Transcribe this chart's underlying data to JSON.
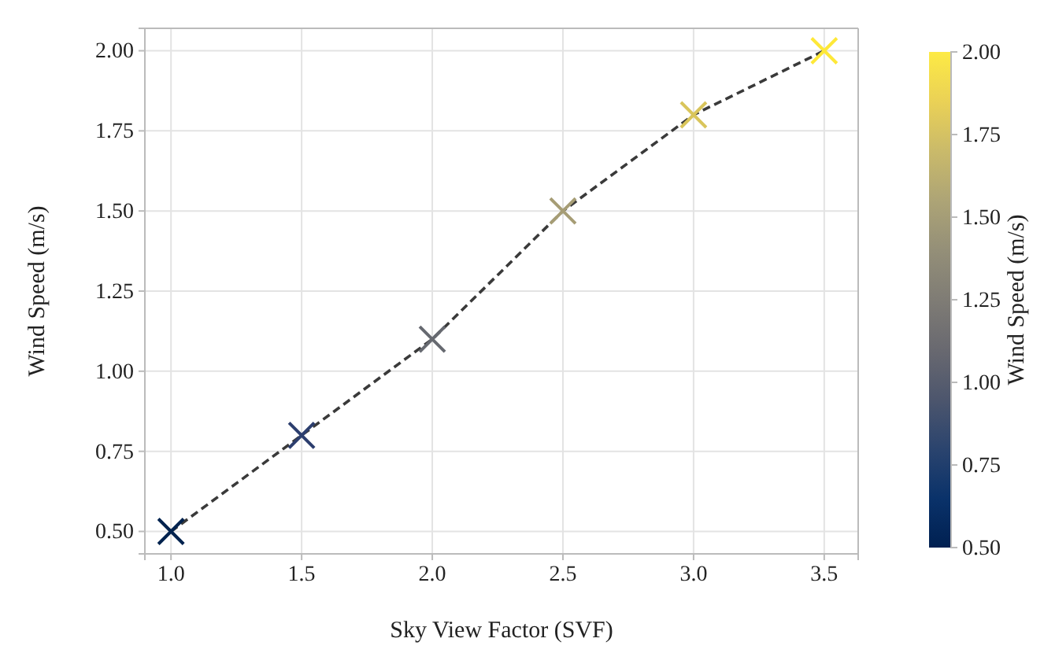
{
  "chart_data": {
    "type": "scatter",
    "xlabel": "Sky View Factor (SVF)",
    "ylabel": "Wind Speed (m/s)",
    "clabel": "Wind Speed (m/s)",
    "x": [
      1.0,
      1.5,
      2.0,
      2.5,
      3.0,
      3.5
    ],
    "series": [
      {
        "type": "line",
        "color": "#3a3a3a",
        "line_style": "dashed",
        "values": [
          0.5,
          0.8,
          1.1,
          1.5,
          1.8,
          2.0
        ]
      },
      {
        "type": "scatter",
        "marker": "cross",
        "values": [
          0.5,
          0.8,
          1.1,
          1.5,
          1.8,
          2.0
        ],
        "colors": [
          "#00224e",
          "#2c3e6e",
          "#666970",
          "#a69d75",
          "#d9c55b",
          "#fee838"
        ]
      }
    ],
    "xlim": [
      0.9,
      3.63
    ],
    "xticks": [
      {
        "value": 1,
        "label": "1.0"
      },
      {
        "value": 1.5,
        "label": "1.5"
      },
      {
        "value": 2,
        "label": "2.0"
      },
      {
        "value": 2.5,
        "label": "2.5"
      },
      {
        "value": 3,
        "label": "3.0"
      },
      {
        "value": 3.5,
        "label": "3.5"
      }
    ],
    "ylim": [
      0.43,
      2.07
    ],
    "yticks": [
      {
        "value": 0.5,
        "label": "0.50"
      },
      {
        "value": 0.75,
        "label": "0.75"
      },
      {
        "value": 1,
        "label": "1.00"
      },
      {
        "value": 1.25,
        "label": "1.25"
      },
      {
        "value": 1.5,
        "label": "1.50"
      },
      {
        "value": 1.75,
        "label": "1.75"
      },
      {
        "value": 2,
        "label": "2.00"
      }
    ],
    "clim": [
      0.5,
      2.0
    ],
    "cticks": [
      {
        "value": 0.5,
        "label": "0.50"
      },
      {
        "value": 0.75,
        "label": "0.75"
      },
      {
        "value": 1,
        "label": "1.00"
      },
      {
        "value": 1.25,
        "label": "1.25"
      },
      {
        "value": 1.5,
        "label": "1.50"
      },
      {
        "value": 1.75,
        "label": "1.75"
      },
      {
        "value": 2,
        "label": "2.00"
      }
    ],
    "grid": true
  }
}
